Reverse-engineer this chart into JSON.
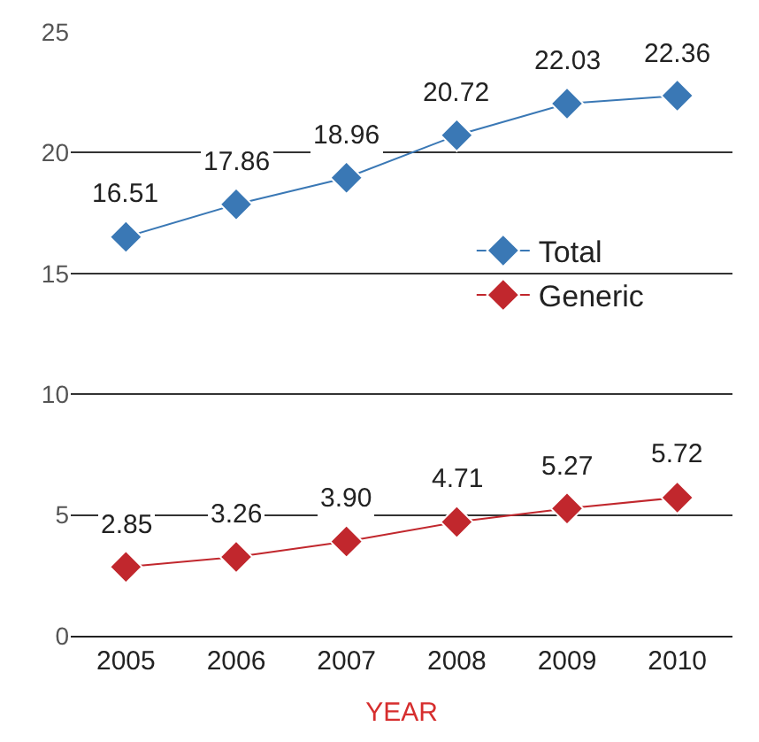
{
  "chart_data": {
    "type": "line",
    "xlabel": "YEAR",
    "categories": [
      "2005",
      "2006",
      "2007",
      "2008",
      "2009",
      "2010"
    ],
    "series": [
      {
        "name": "Total",
        "color": "#3a78b5",
        "values": [
          16.51,
          17.86,
          18.96,
          20.72,
          22.03,
          22.36
        ],
        "value_labels": [
          "16.51",
          "17.86",
          "18.96",
          "20.72",
          "22.03",
          "22.36"
        ]
      },
      {
        "name": "Generic",
        "color": "#c1272d",
        "values": [
          2.85,
          3.26,
          3.9,
          4.71,
          5.27,
          5.72
        ],
        "value_labels": [
          "2.85",
          "3.26",
          "3.90",
          "4.71",
          "5.27",
          "5.72"
        ]
      }
    ],
    "ylim": [
      0,
      25
    ],
    "yticks": [
      0,
      5,
      10,
      15,
      20,
      25
    ],
    "grid": "y",
    "legend": "right",
    "marker": "diamond",
    "line_style": "solid"
  }
}
